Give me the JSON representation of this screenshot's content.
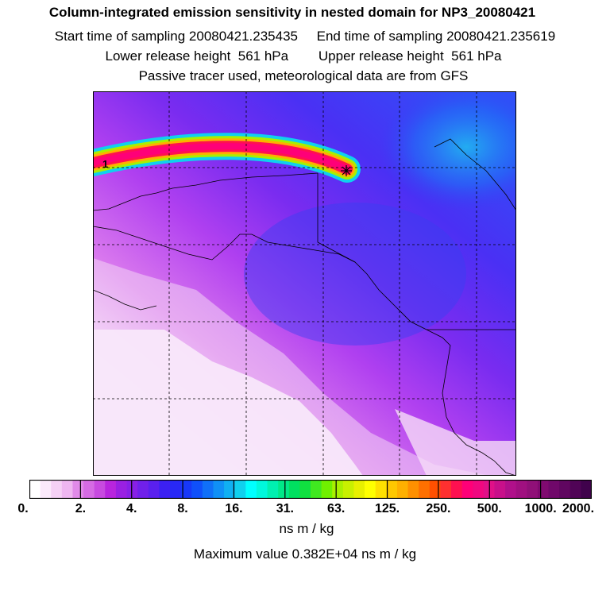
{
  "titles": {
    "line1": "Column-integrated emission sensitivity in nested domain for NP3_20080421",
    "line2": "Start time of sampling 20080421.235435     End time of sampling 20080421.235619",
    "line3": "Lower release height  561 hPa        Upper release height  561 hPa",
    "line4": "Passive tracer used, meteorological data are from GFS"
  },
  "map": {
    "point_label": "1",
    "release_point_marker": "star",
    "grid_lines": "dashed"
  },
  "colorbar": {
    "tick_labels": [
      "0.",
      "2.",
      "4.",
      "8.",
      "16.",
      "31.",
      "63.",
      "125.",
      "250.",
      "500.",
      "1000.",
      "2000."
    ],
    "colors": [
      "#ffffff",
      "#fbe9fb",
      "#f5d0f5",
      "#eeb6f0",
      "#e08ae8",
      "#d66be4",
      "#c84ae0",
      "#b825de",
      "#9a20e2",
      "#8820e6",
      "#7020ea",
      "#5a20ee",
      "#3c20f2",
      "#2828f6",
      "#1838f8",
      "#1050fa",
      "#1070f8",
      "#1090f6",
      "#10b0f2",
      "#10d0ee",
      "#00ffff",
      "#00f8dc",
      "#00f0b0",
      "#00e888",
      "#00e060",
      "#10e040",
      "#40e820",
      "#70f000",
      "#a8f000",
      "#c8f000",
      "#e8f000",
      "#ffff00",
      "#ffe000",
      "#ffc800",
      "#ffb000",
      "#ff9000",
      "#ff7000",
      "#ff5000",
      "#ff3030",
      "#ff1050",
      "#ff0078",
      "#f00880",
      "#e01088",
      "#c8108a",
      "#b0108a",
      "#a01080",
      "#901078",
      "#800a70",
      "#70086a",
      "#600660",
      "#500456",
      "#40024c"
    ],
    "unit": "ns m / kg"
  },
  "max_value_text": "Maximum value  0.382E+04 ns m / kg"
}
